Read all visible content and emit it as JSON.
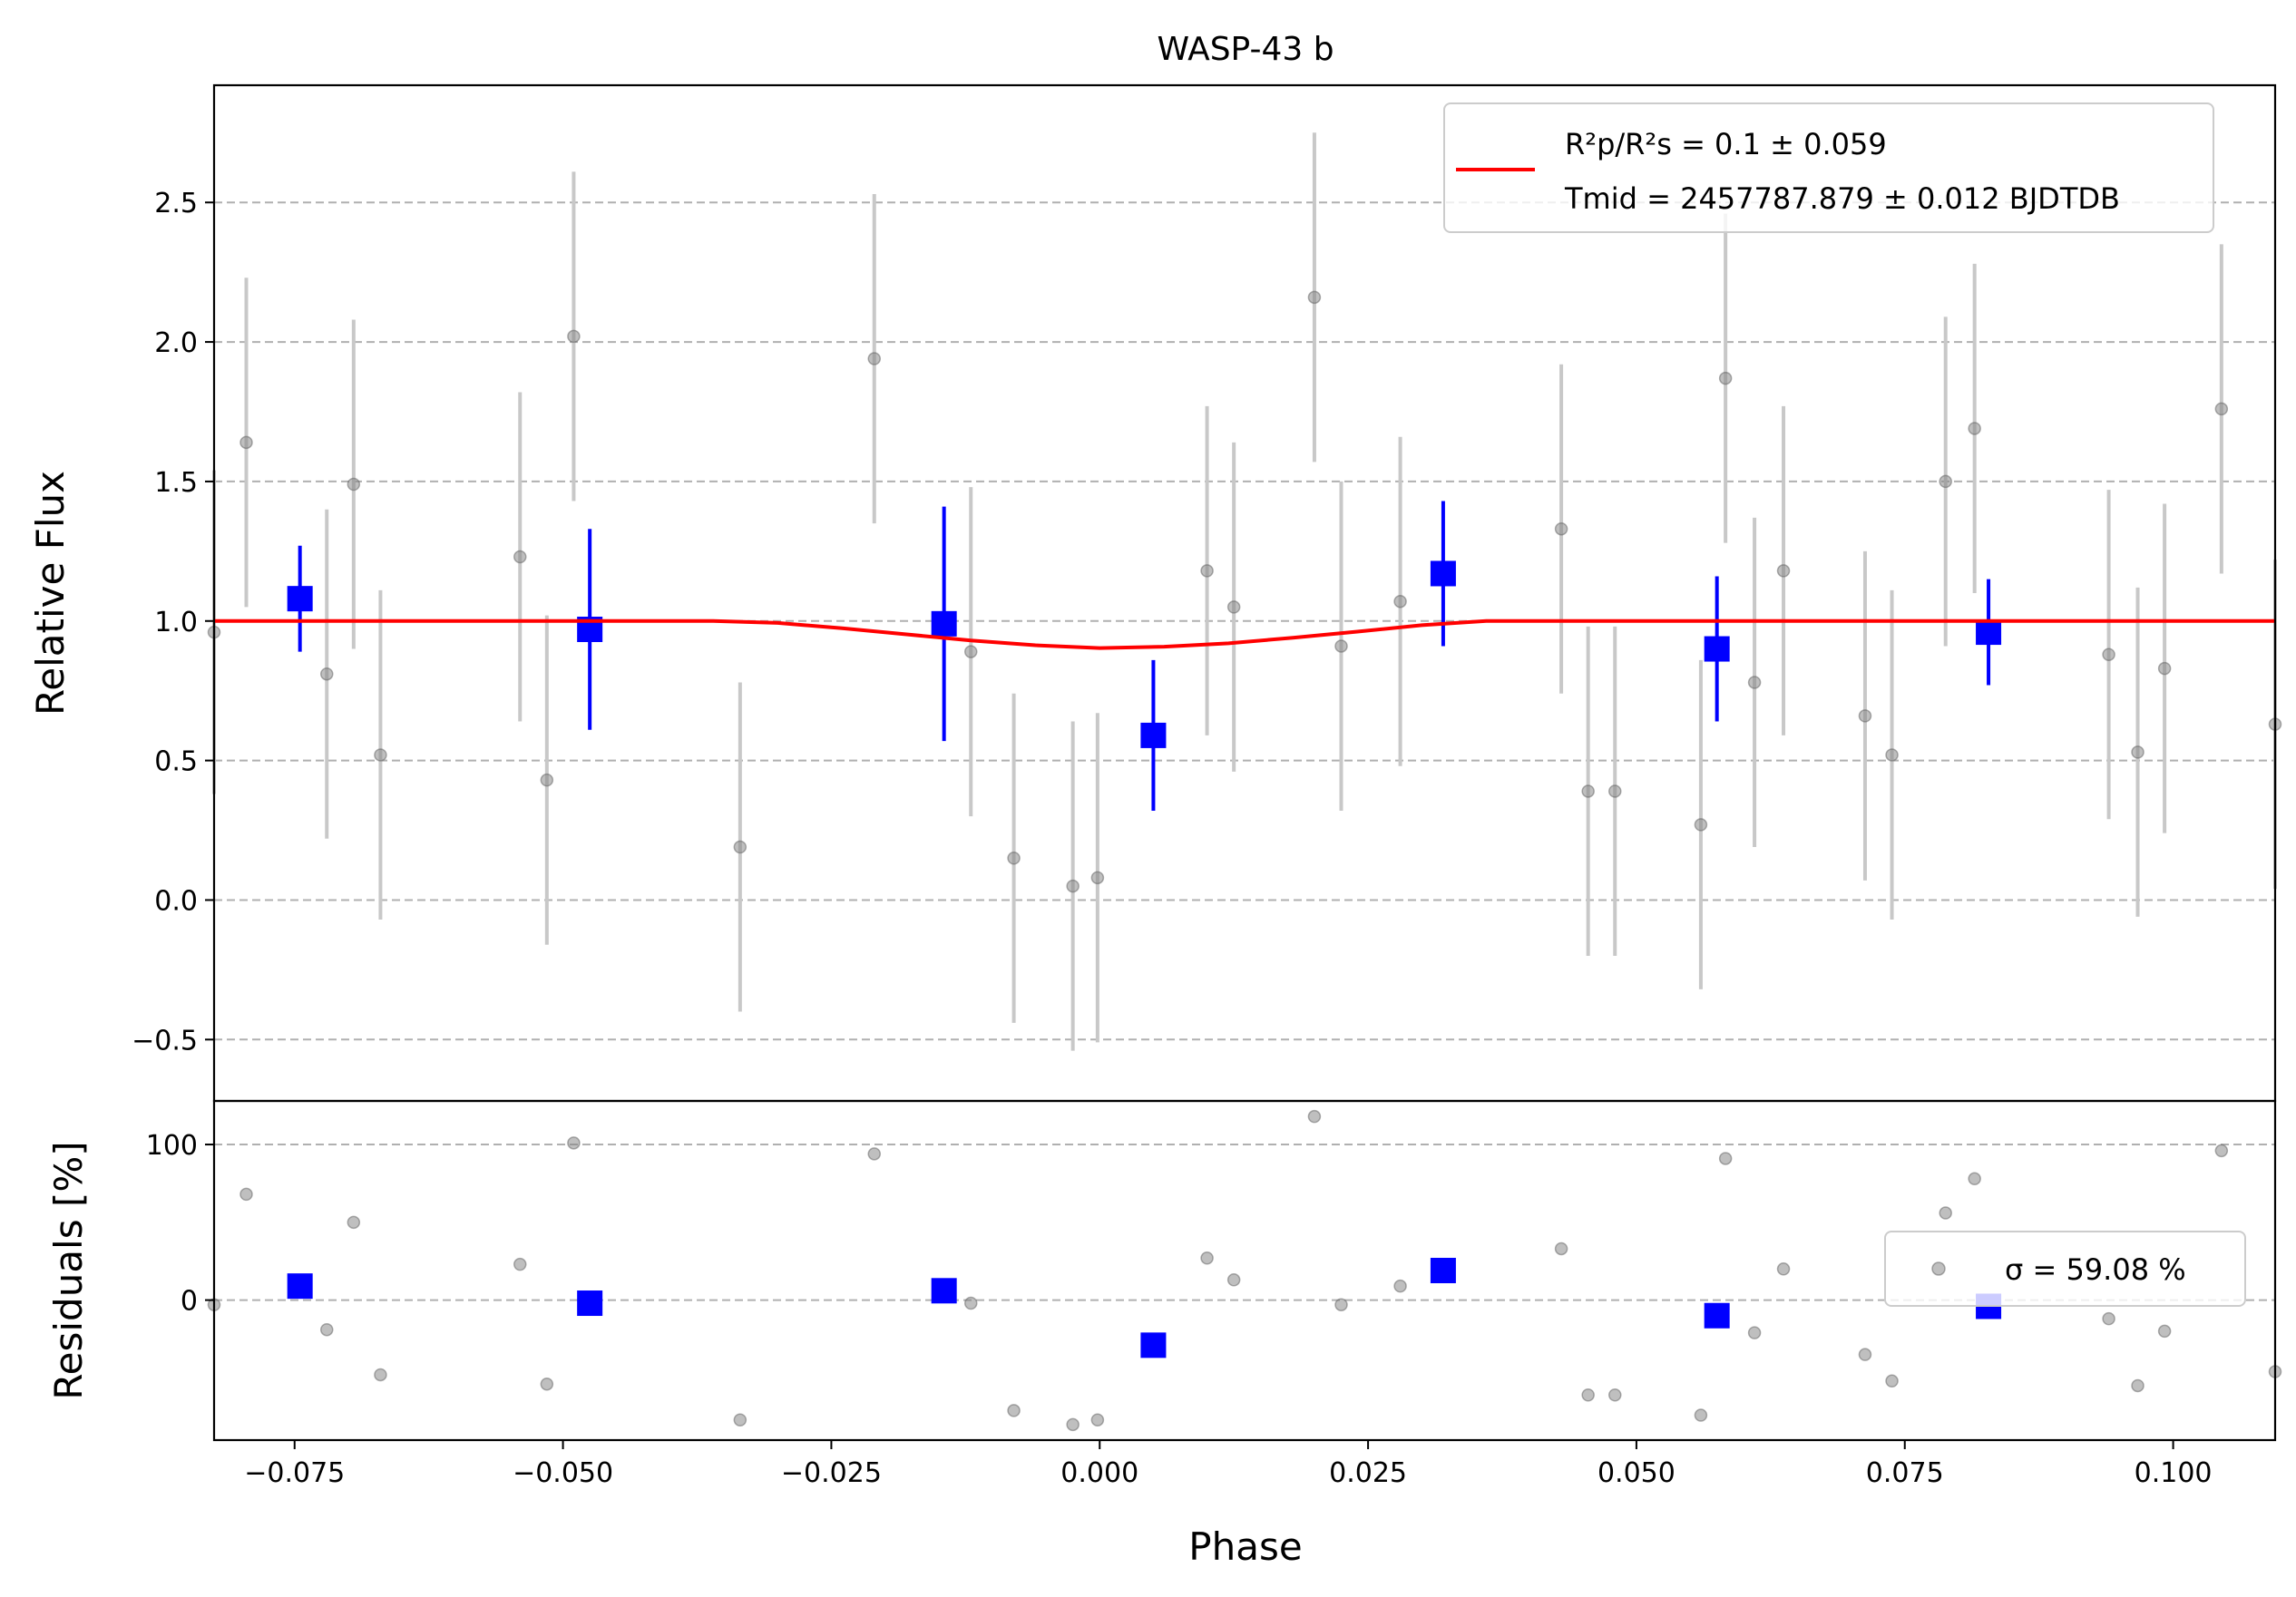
{
  "chart_data": [
    {
      "panel": "main",
      "type": "scatter",
      "title": "WASP-43 b",
      "xlabel": "",
      "ylabel": "Relative Flux",
      "xlim": [
        -0.0825,
        0.1095
      ],
      "ylim": [
        -0.72,
        2.92
      ],
      "yticks": [
        -0.5,
        0.0,
        0.5,
        1.0,
        1.5,
        2.0,
        2.5
      ],
      "ytick_labels": [
        "−0.5",
        "0.0",
        "0.5",
        "1.0",
        "1.5",
        "2.0",
        "2.5"
      ],
      "grid": "horizontal dashed",
      "legend_position": "top-right",
      "legend": {
        "model_label_line1": "R²p/R²s = 0.1 ± 0.059",
        "model_label_line2": "Tmid = 2457787.879 ± 0.012 BJDTDB"
      },
      "series": [
        {
          "name": "",
          "kind": "raw",
          "color": "#808080",
          "points": [
            {
              "x": -0.0825,
              "y": 0.96,
              "err": 0.58
            },
            {
              "x": -0.0795,
              "y": 1.64,
              "err": 0.59
            },
            {
              "x": -0.072,
              "y": 0.81,
              "err": 0.59
            },
            {
              "x": -0.0695,
              "y": 1.49,
              "err": 0.59
            },
            {
              "x": -0.067,
              "y": 0.52,
              "err": 0.59
            },
            {
              "x": -0.054,
              "y": 1.23,
              "err": 0.59
            },
            {
              "x": -0.0515,
              "y": 0.43,
              "err": 0.59
            },
            {
              "x": -0.049,
              "y": 2.02,
              "err": 0.59
            },
            {
              "x": -0.0335,
              "y": 0.19,
              "err": 0.59
            },
            {
              "x": -0.021,
              "y": 1.94,
              "err": 0.59
            },
            {
              "x": -0.012,
              "y": 0.89,
              "err": 0.59
            },
            {
              "x": -0.008,
              "y": 0.15,
              "err": 0.59
            },
            {
              "x": -0.0025,
              "y": 0.05,
              "err": 0.59
            },
            {
              "x": -0.0002,
              "y": 0.08,
              "err": 0.59
            },
            {
              "x": 0.01,
              "y": 1.18,
              "err": 0.59
            },
            {
              "x": 0.0125,
              "y": 1.05,
              "err": 0.59
            },
            {
              "x": 0.02,
              "y": 2.16,
              "err": 0.59
            },
            {
              "x": 0.0225,
              "y": 0.91,
              "err": 0.59
            },
            {
              "x": 0.028,
              "y": 1.07,
              "err": 0.59
            },
            {
              "x": 0.043,
              "y": 1.33,
              "err": 0.59
            },
            {
              "x": 0.0455,
              "y": 0.39,
              "err": 0.59
            },
            {
              "x": 0.048,
              "y": 0.39,
              "err": 0.59
            },
            {
              "x": 0.056,
              "y": 0.27,
              "err": 0.59
            },
            {
              "x": 0.0583,
              "y": 1.87,
              "err": 0.59
            },
            {
              "x": 0.061,
              "y": 0.78,
              "err": 0.59
            },
            {
              "x": 0.0637,
              "y": 1.18,
              "err": 0.59
            },
            {
              "x": 0.0713,
              "y": 0.66,
              "err": 0.59
            },
            {
              "x": 0.0738,
              "y": 0.52,
              "err": 0.59
            },
            {
              "x": 0.0788,
              "y": 1.5,
              "err": 0.59
            },
            {
              "x": 0.0815,
              "y": 1.69,
              "err": 0.59
            },
            {
              "x": 0.094,
              "y": 0.88,
              "err": 0.59
            },
            {
              "x": 0.0967,
              "y": 0.53,
              "err": 0.59
            },
            {
              "x": 0.0992,
              "y": 0.83,
              "err": 0.59
            },
            {
              "x": 0.1045,
              "y": 1.76,
              "err": 0.59
            },
            {
              "x": 0.1095,
              "y": 0.63,
              "err": 0.59
            }
          ]
        },
        {
          "name": "",
          "kind": "binned",
          "color": "#0000ff",
          "points": [
            {
              "x": -0.0745,
              "y": 1.08,
              "err": 0.19
            },
            {
              "x": -0.0475,
              "y": 0.97,
              "err": 0.36
            },
            {
              "x": -0.0145,
              "y": 0.99,
              "err": 0.42
            },
            {
              "x": 0.005,
              "y": 0.59,
              "err": 0.27
            },
            {
              "x": 0.032,
              "y": 1.17,
              "err": 0.26
            },
            {
              "x": 0.0575,
              "y": 0.9,
              "err": 0.26
            },
            {
              "x": 0.0828,
              "y": 0.96,
              "err": 0.19
            }
          ]
        },
        {
          "name": "R²p/R²s = 0.1 ± 0.059",
          "kind": "model",
          "color": "#ff0000",
          "x": [
            -0.0825,
            -0.036,
            -0.03,
            -0.024,
            -0.018,
            -0.012,
            -0.006,
            0.0,
            0.006,
            0.012,
            0.018,
            0.024,
            0.03,
            0.036,
            0.1095
          ],
          "y": [
            1.0,
            1.0,
            0.993,
            0.974,
            0.952,
            0.93,
            0.913,
            0.903,
            0.908,
            0.92,
            0.94,
            0.962,
            0.985,
            1.0,
            1.0
          ]
        }
      ]
    },
    {
      "panel": "residuals",
      "type": "scatter",
      "xlabel": "Phase",
      "ylabel": "Residuals [%]",
      "xlim": [
        -0.0825,
        0.1095
      ],
      "ylim": [
        -90,
        128
      ],
      "yticks": [
        0,
        100
      ],
      "ytick_labels": [
        "0",
        "100"
      ],
      "xticks": [
        -0.075,
        -0.05,
        -0.025,
        0.0,
        0.025,
        0.05,
        0.075,
        0.1
      ],
      "xtick_labels": [
        "−0.075",
        "−0.050",
        "−0.025",
        "0.000",
        "0.025",
        "0.050",
        "0.075",
        "0.100"
      ],
      "grid": "horizontal dashed",
      "legend_position": "right",
      "legend": {
        "label": "σ = 59.08 %"
      },
      "series": [
        {
          "name": "σ = 59.08 %",
          "kind": "raw",
          "color": "#808080",
          "points": [
            {
              "x": -0.0825,
              "y": -3
            },
            {
              "x": -0.0795,
              "y": 68
            },
            {
              "x": -0.072,
              "y": -19
            },
            {
              "x": -0.0695,
              "y": 50
            },
            {
              "x": -0.067,
              "y": -48
            },
            {
              "x": -0.054,
              "y": 23
            },
            {
              "x": -0.0515,
              "y": -54
            },
            {
              "x": -0.049,
              "y": 101
            },
            {
              "x": -0.0335,
              "y": -77
            },
            {
              "x": -0.021,
              "y": 94
            },
            {
              "x": -0.012,
              "y": -2
            },
            {
              "x": -0.008,
              "y": -71
            },
            {
              "x": -0.0025,
              "y": -80
            },
            {
              "x": -0.0002,
              "y": -77
            },
            {
              "x": 0.01,
              "y": 27
            },
            {
              "x": 0.0125,
              "y": 13
            },
            {
              "x": 0.02,
              "y": 118
            },
            {
              "x": 0.0225,
              "y": -3
            },
            {
              "x": 0.028,
              "y": 9
            },
            {
              "x": 0.043,
              "y": 33
            },
            {
              "x": 0.0455,
              "y": -61
            },
            {
              "x": 0.048,
              "y": -61
            },
            {
              "x": 0.056,
              "y": -74
            },
            {
              "x": 0.0583,
              "y": 91
            },
            {
              "x": 0.061,
              "y": -21
            },
            {
              "x": 0.0637,
              "y": 20
            },
            {
              "x": 0.0713,
              "y": -35
            },
            {
              "x": 0.0738,
              "y": -52
            },
            {
              "x": 0.0788,
              "y": 56
            },
            {
              "x": 0.0815,
              "y": 78
            },
            {
              "x": 0.094,
              "y": -12
            },
            {
              "x": 0.0967,
              "y": -55
            },
            {
              "x": 0.0992,
              "y": -20
            },
            {
              "x": 0.1045,
              "y": 96
            },
            {
              "x": 0.1095,
              "y": -46
            }
          ]
        },
        {
          "name": "",
          "kind": "binned",
          "color": "#0000ff",
          "points": [
            {
              "x": -0.0745,
              "y": 9
            },
            {
              "x": -0.0475,
              "y": -2
            },
            {
              "x": -0.0145,
              "y": 6
            },
            {
              "x": 0.005,
              "y": -29
            },
            {
              "x": 0.032,
              "y": 19
            },
            {
              "x": 0.0575,
              "y": -10
            },
            {
              "x": 0.0828,
              "y": -4
            }
          ]
        }
      ]
    }
  ]
}
